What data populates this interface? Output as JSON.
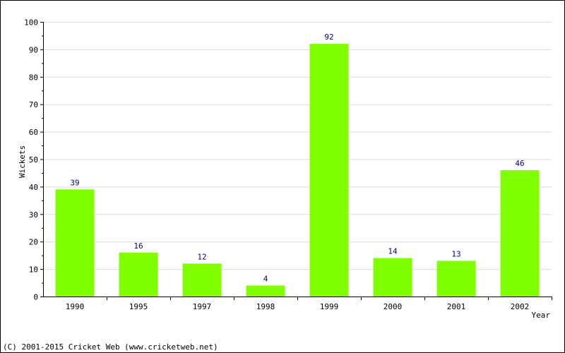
{
  "chart_data": {
    "type": "bar",
    "categories": [
      "1990",
      "1995",
      "1997",
      "1998",
      "1999",
      "2000",
      "2001",
      "2002"
    ],
    "values": [
      39,
      16,
      12,
      4,
      92,
      14,
      13,
      46
    ],
    "xlabel": "Year",
    "ylabel": "Wickets",
    "ylim": [
      0,
      100
    ],
    "yticks": [
      0,
      10,
      20,
      30,
      40,
      50,
      60,
      70,
      80,
      90,
      100
    ],
    "bar_color": "#80ff00",
    "label_color": "#000080",
    "grid": true,
    "legend": "none"
  },
  "footer": "(C) 2001-2015 Cricket Web (www.cricketweb.net)"
}
